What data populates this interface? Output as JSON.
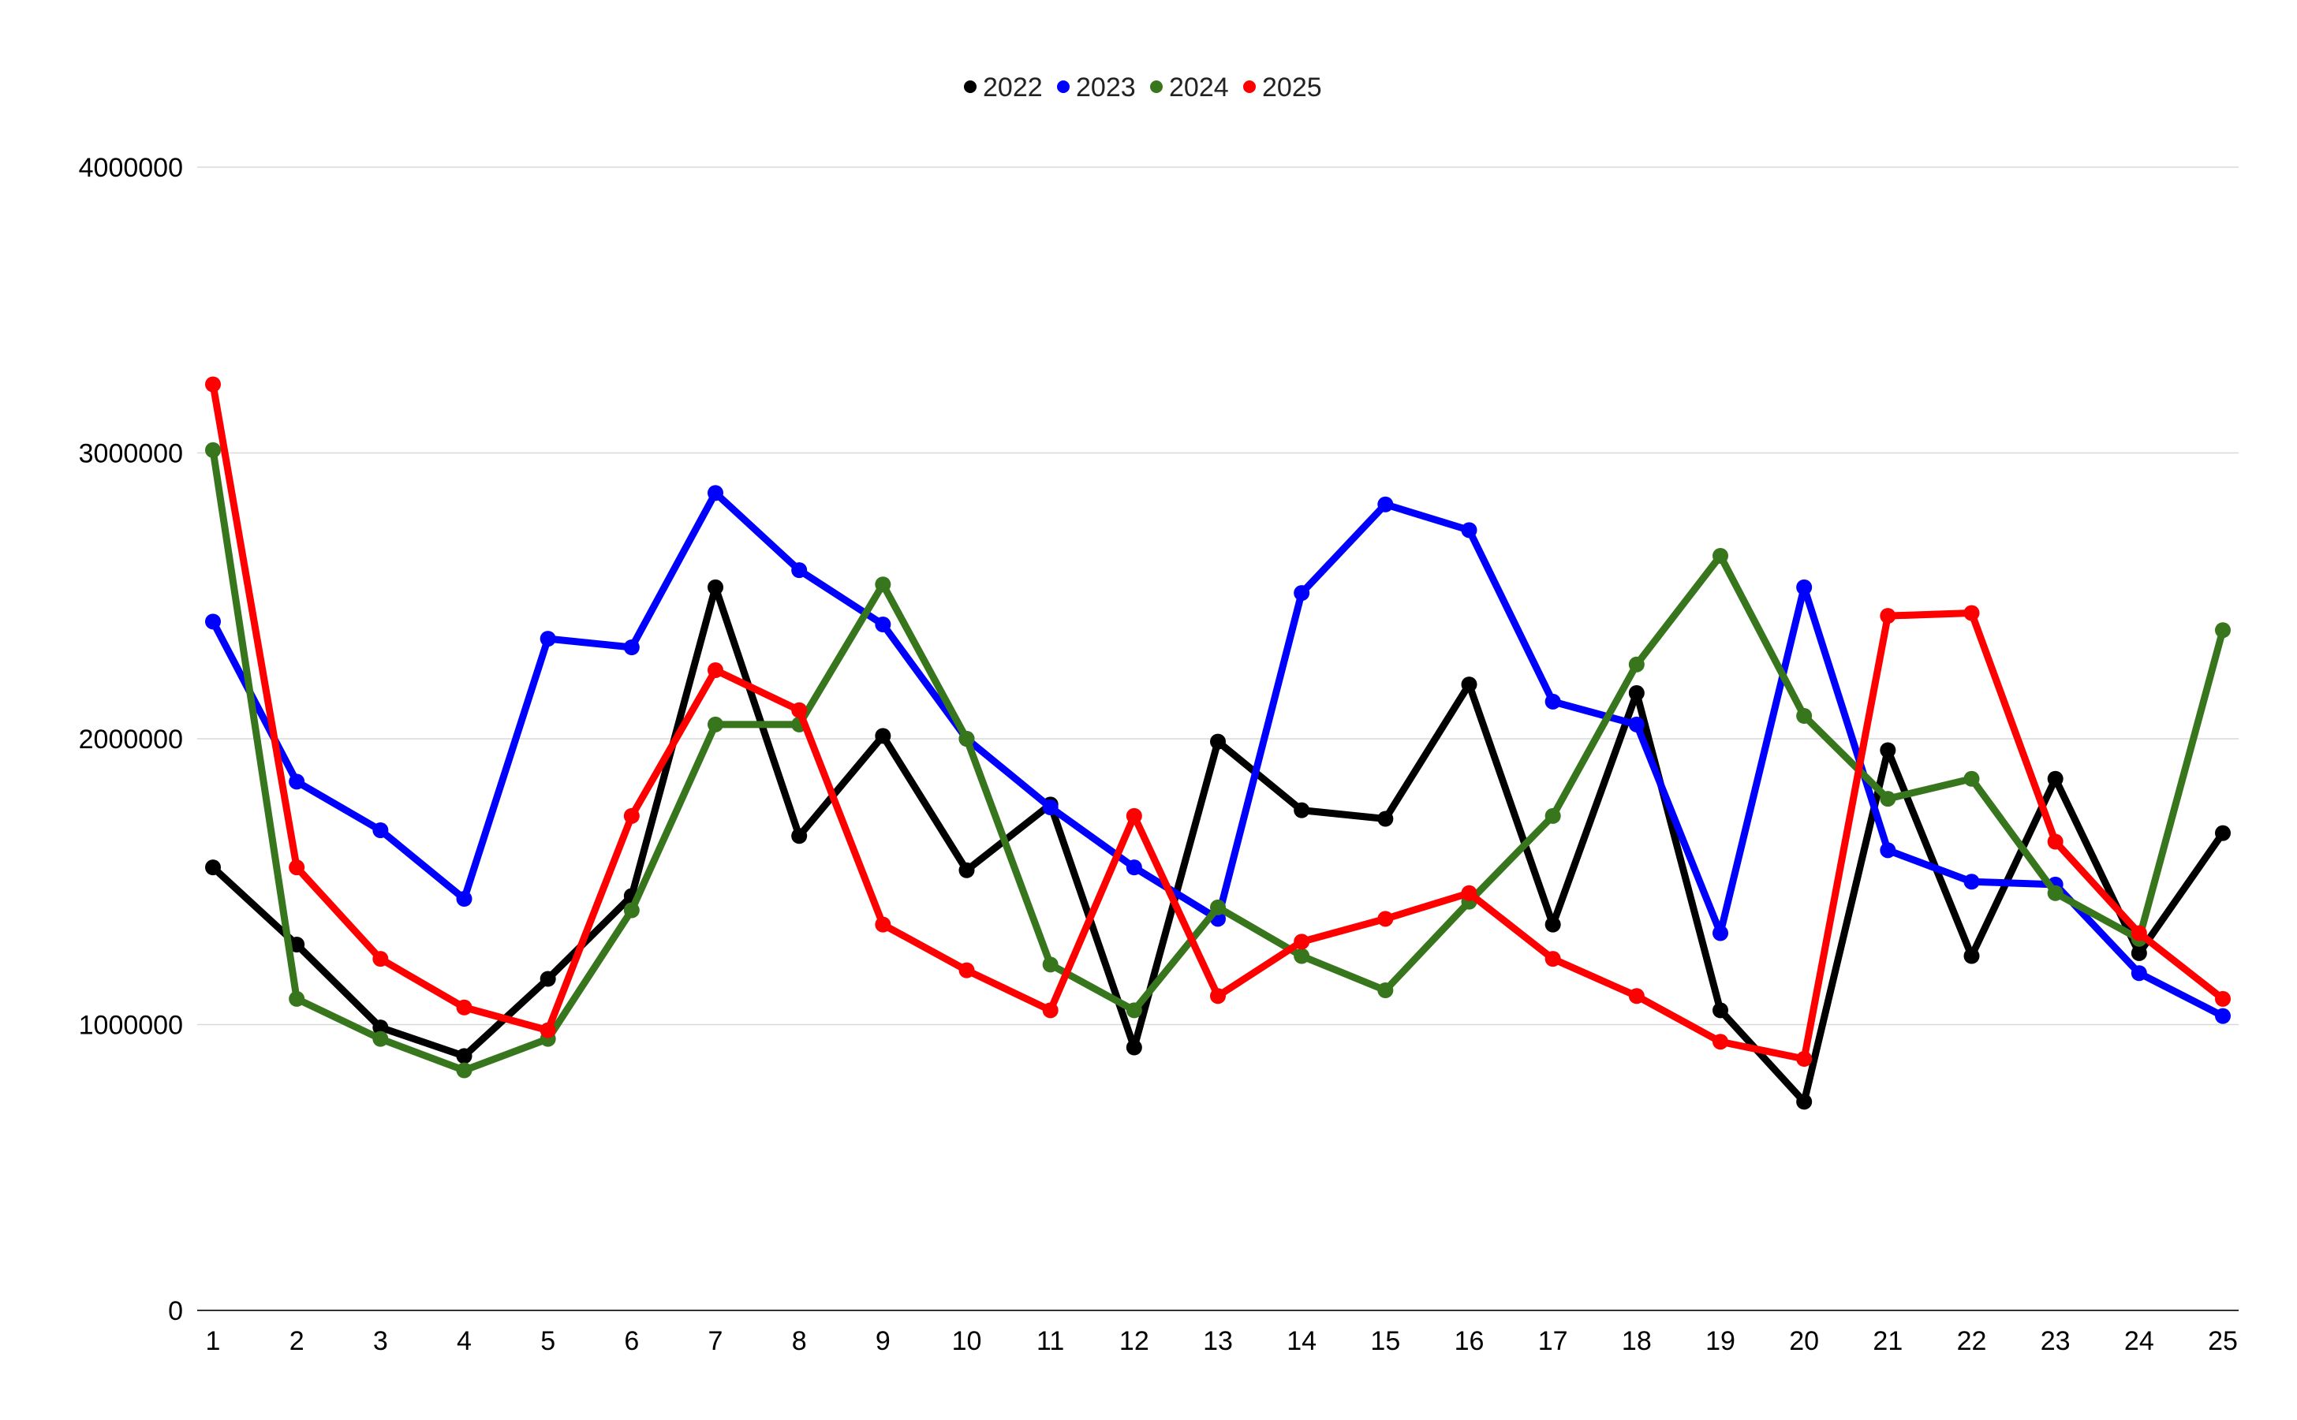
{
  "chart_data": {
    "type": "line",
    "title": "",
    "xlabel": "",
    "ylabel": "",
    "x": [
      1,
      2,
      3,
      4,
      5,
      6,
      7,
      8,
      9,
      10,
      11,
      12,
      13,
      14,
      15,
      16,
      17,
      18,
      19,
      20,
      21,
      22,
      23,
      24,
      25
    ],
    "x_tick_labels": [
      "1",
      "2",
      "3",
      "4",
      "5",
      "6",
      "7",
      "8",
      "9",
      "10",
      "11",
      "12",
      "13",
      "14",
      "15",
      "16",
      "17",
      "18",
      "19",
      "20",
      "21",
      "22",
      "23",
      "24",
      "25"
    ],
    "ylim": [
      0,
      4000000
    ],
    "y_ticks": [
      0,
      1000000,
      2000000,
      3000000,
      4000000
    ],
    "y_tick_labels": [
      "0",
      "1000000",
      "2000000",
      "3000000",
      "4000000"
    ],
    "grid": true,
    "legend_position": "top-center",
    "series": [
      {
        "name": "2022",
        "color": "#000000",
        "values": [
          1550000,
          1280000,
          990000,
          890000,
          1160000,
          1450000,
          2530000,
          1660000,
          2010000,
          1540000,
          1770000,
          920000,
          1990000,
          1750000,
          1720000,
          2190000,
          1350000,
          2160000,
          1050000,
          730000,
          1960000,
          1240000,
          1860000,
          1250000,
          1670000
        ]
      },
      {
        "name": "2023",
        "color": "#0000ff",
        "values": [
          2410000,
          1850000,
          1680000,
          1440000,
          2350000,
          2320000,
          2860000,
          2590000,
          2400000,
          2000000,
          1760000,
          1550000,
          1370000,
          2510000,
          2820000,
          2730000,
          2130000,
          2050000,
          1320000,
          2530000,
          1610000,
          1500000,
          1490000,
          1180000,
          1030000
        ]
      },
      {
        "name": "2024",
        "color": "#38761d",
        "values": [
          3010000,
          1090000,
          950000,
          840000,
          950000,
          1400000,
          2050000,
          2050000,
          2540000,
          2000000,
          1210000,
          1050000,
          1410000,
          1240000,
          1120000,
          1430000,
          1730000,
          2260000,
          2640000,
          2080000,
          1790000,
          1860000,
          1460000,
          1300000,
          2380000
        ]
      },
      {
        "name": "2025",
        "color": "#ff0000",
        "values": [
          3240000,
          1550000,
          1230000,
          1060000,
          980000,
          1730000,
          2240000,
          2100000,
          1350000,
          1190000,
          1050000,
          1730000,
          1100000,
          1290000,
          1370000,
          1460000,
          1230000,
          1100000,
          940000,
          880000,
          2430000,
          2440000,
          1640000,
          1320000,
          1090000
        ]
      }
    ]
  }
}
